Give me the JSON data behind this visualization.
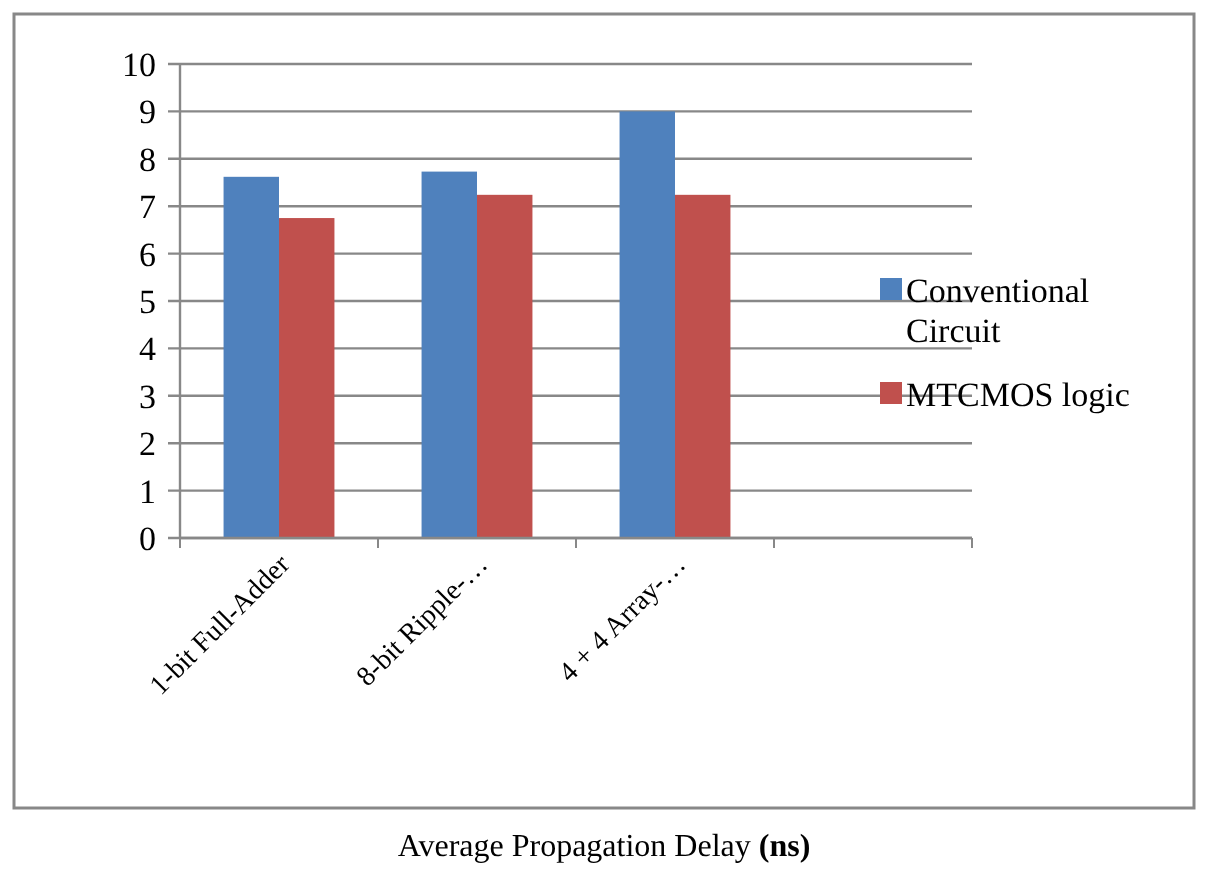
{
  "chart_data": {
    "type": "bar",
    "xlabel": "Average Propagation Delay (ns)",
    "categories": [
      "1-bit Full-Adder",
      "8-bit Ripple-…",
      "4 + 4 Array-…",
      null
    ],
    "series": [
      {
        "name": "Conventional Circuit",
        "color": "#4f81bd",
        "values": [
          7.62,
          7.73,
          9.0,
          null
        ]
      },
      {
        "name": "MTCMOS logic",
        "color": "#c0504d",
        "values": [
          6.75,
          7.24,
          7.24,
          null
        ]
      }
    ],
    "ylim": [
      0,
      10
    ],
    "yticks": [
      0,
      1,
      2,
      3,
      4,
      5,
      6,
      7,
      8,
      9,
      10
    ],
    "grid": "y",
    "legend": "right"
  }
}
